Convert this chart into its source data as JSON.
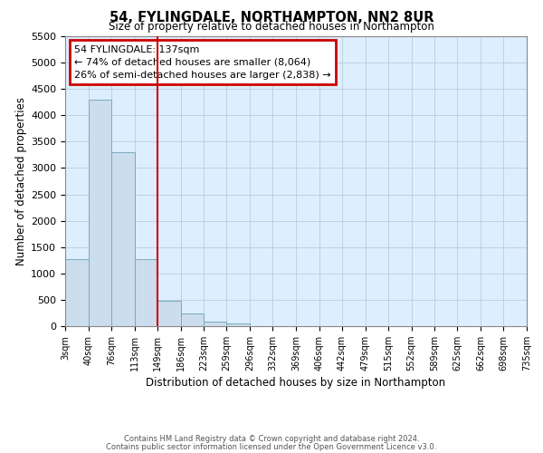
{
  "title": "54, FYLINGDALE, NORTHAMPTON, NN2 8UR",
  "subtitle": "Size of property relative to detached houses in Northampton",
  "xlabel": "Distribution of detached houses by size in Northampton",
  "ylabel": "Number of detached properties",
  "bar_color": "#ccdded",
  "bar_edge_color": "#7aaabb",
  "background_color": "#ffffff",
  "plot_bg_color": "#ddeeff",
  "grid_color": "#bbccdd",
  "annotation_box_color": "#cc0000",
  "vline_color": "#cc0000",
  "vline_x_index": 3,
  "annotation_title": "54 FYLINGDALE: 137sqm",
  "annotation_line1": "← 74% of detached houses are smaller (8,064)",
  "annotation_line2": "26% of semi-detached houses are larger (2,838) →",
  "ylim": [
    0,
    5500
  ],
  "yticks": [
    0,
    500,
    1000,
    1500,
    2000,
    2500,
    3000,
    3500,
    4000,
    4500,
    5000,
    5500
  ],
  "bin_edges": [
    3,
    40,
    76,
    113,
    149,
    186,
    223,
    259,
    296,
    332,
    369,
    406,
    442,
    479,
    515,
    552,
    589,
    625,
    662,
    698,
    735
  ],
  "bin_labels": [
    "3sqm",
    "40sqm",
    "76sqm",
    "113sqm",
    "149sqm",
    "186sqm",
    "223sqm",
    "259sqm",
    "296sqm",
    "332sqm",
    "369sqm",
    "406sqm",
    "442sqm",
    "479sqm",
    "515sqm",
    "552sqm",
    "589sqm",
    "625sqm",
    "662sqm",
    "698sqm",
    "735sqm"
  ],
  "counts": [
    1270,
    4300,
    3300,
    1280,
    480,
    235,
    90,
    60,
    0,
    0,
    0,
    0,
    0,
    0,
    0,
    0,
    0,
    0,
    0,
    0
  ],
  "footer_line1": "Contains HM Land Registry data © Crown copyright and database right 2024.",
  "footer_line2": "Contains public sector information licensed under the Open Government Licence v3.0."
}
